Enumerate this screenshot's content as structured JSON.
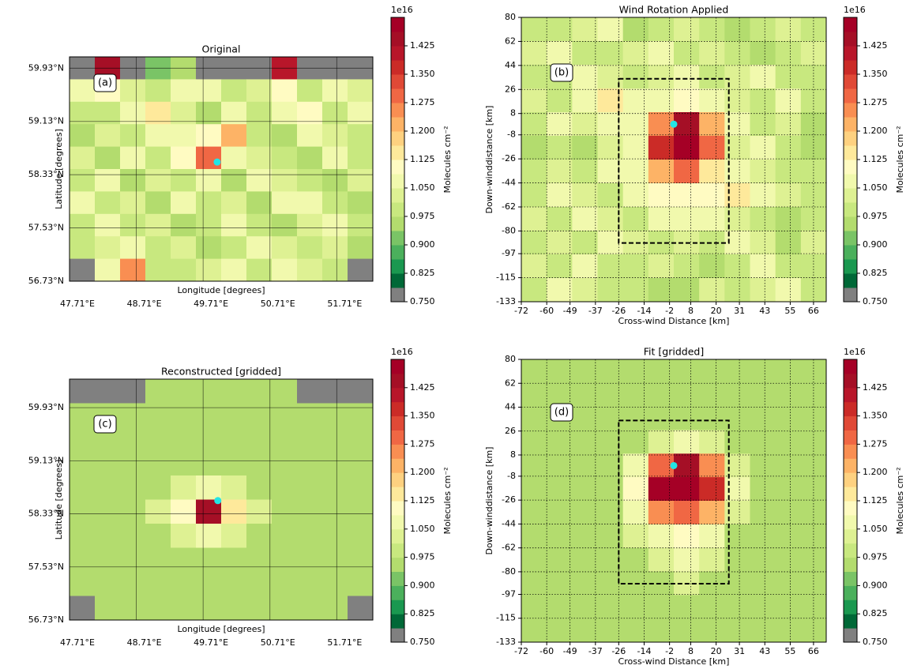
{
  "chart_data": [
    {
      "type": "heatmap",
      "title": "Original",
      "panel_label": "(a)",
      "xlabel": "Longitude [degrees]",
      "ylabel": "Latitude [degrees]",
      "grid_style": "solid",
      "xlim": [
        47.71,
        52.25
      ],
      "ylim": [
        56.73,
        60.1
      ],
      "xticks": [
        {
          "value": 47.71,
          "label": "47.71°E"
        },
        {
          "value": 48.71,
          "label": "48.71°E"
        },
        {
          "value": 49.71,
          "label": "49.71°E"
        },
        {
          "value": 50.71,
          "label": "50.71°E"
        },
        {
          "value": 51.71,
          "label": "51.71°E"
        }
      ],
      "yticks": [
        {
          "value": 56.73,
          "label": "56.73°N"
        },
        {
          "value": 57.53,
          "label": "57.53°N"
        },
        {
          "value": 58.33,
          "label": "58.33°N"
        },
        {
          "value": 59.13,
          "label": "59.13°N"
        },
        {
          "value": 59.93,
          "label": "59.93°N"
        }
      ],
      "z": [
        [
          0.75,
          1.45,
          0.75,
          0.9,
          0.95,
          0.75,
          0.75,
          0.75,
          1.42,
          0.75,
          0.75,
          0.75
        ],
        [
          1.05,
          1.1,
          1.02,
          1.0,
          1.08,
          1.05,
          0.98,
          1.02,
          1.1,
          1.0,
          1.05,
          1.02
        ],
        [
          1.0,
          0.98,
          1.05,
          1.15,
          1.02,
          0.97,
          1.05,
          1.0,
          1.08,
          1.12,
          0.98,
          1.05
        ],
        [
          0.95,
          1.02,
          1.0,
          1.08,
          1.05,
          1.1,
          1.2,
          1.0,
          0.97,
          1.05,
          1.02,
          0.98
        ],
        [
          1.02,
          0.97,
          1.05,
          1.0,
          1.12,
          1.3,
          1.05,
          1.02,
          1.0,
          0.95,
          1.08,
          1.0
        ],
        [
          0.98,
          1.05,
          0.95,
          1.02,
          1.0,
          1.05,
          0.97,
          1.05,
          1.02,
          1.0,
          0.96,
          1.02
        ],
        [
          1.05,
          1.0,
          1.02,
          0.96,
          1.05,
          0.98,
          1.02,
          0.95,
          1.05,
          1.08,
          1.0,
          0.97
        ],
        [
          1.0,
          1.08,
          0.98,
          1.02,
          0.94,
          1.0,
          1.05,
          1.0,
          0.97,
          1.02,
          1.05,
          1.0
        ],
        [
          0.98,
          1.02,
          1.05,
          1.0,
          1.02,
          0.95,
          1.0,
          1.08,
          1.02,
          0.98,
          1.02,
          0.96
        ],
        [
          0.75,
          1.05,
          1.25,
          1.0,
          0.98,
          1.02,
          1.05,
          1.0,
          1.05,
          1.02,
          1.0,
          0.75
        ]
      ],
      "marker": {
        "x": 49.92,
        "y": 58.52,
        "color": "#22e5e5"
      },
      "colorbar": {
        "label": "Molecules cm⁻²",
        "offset": "1e16",
        "lim": [
          0.75,
          1.5
        ],
        "ticks": [
          {
            "value": 0.75,
            "label": "0.750"
          },
          0.825,
          {
            "value": 0.9,
            "label": "0.900"
          },
          0.975,
          {
            "value": 1.05,
            "label": "1.050"
          },
          1.125,
          {
            "value": 1.2,
            "label": "1.200"
          },
          1.275,
          {
            "value": 1.35,
            "label": "1.350"
          },
          1.425
        ],
        "colors": [
          "#808080",
          "#006837",
          "#1a9850",
          "#4bb05c",
          "#7ac466",
          "#b3dc6e",
          "#c8e87f",
          "#def193",
          "#f1f9ad",
          "#fffbc2",
          "#fee99b",
          "#fed180",
          "#fdb366",
          "#f98e52",
          "#f06744",
          "#e04936",
          "#cb2b27",
          "#b8162a",
          "#a50f26",
          "#a50026"
        ]
      }
    },
    {
      "type": "heatmap",
      "title": "Wind Rotation Applied",
      "panel_label": "(b)",
      "xlabel": "Cross-wind Distance [km]",
      "ylabel": "Down-winddistance [km]",
      "grid_style": "dotted",
      "xlim": [
        -72,
        72
      ],
      "ylim": [
        -133,
        80
      ],
      "xticks": [
        -72,
        -60,
        -49,
        -37,
        -26,
        -14,
        -2,
        8,
        20,
        31,
        43,
        55,
        66
      ],
      "yticks": [
        80,
        62,
        44,
        26,
        8,
        -8,
        -26,
        -44,
        -62,
        -80,
        -97,
        -115,
        -133
      ],
      "z": [
        [
          1.0,
          0.98,
          1.02,
          1.05,
          0.97,
          1.0,
          1.02,
          0.98,
          0.95,
          1.0,
          1.02,
          0.98
        ],
        [
          1.02,
          1.05,
          1.0,
          0.98,
          1.02,
          1.05,
          1.0,
          1.02,
          1.0,
          0.97,
          1.0,
          1.02
        ],
        [
          0.98,
          1.0,
          1.08,
          1.02,
          1.0,
          1.02,
          1.05,
          1.0,
          1.02,
          1.05,
          1.0,
          0.98
        ],
        [
          1.02,
          1.0,
          1.05,
          1.15,
          1.05,
          1.08,
          1.1,
          1.05,
          1.02,
          1.0,
          1.05,
          1.0
        ],
        [
          1.0,
          1.05,
          1.02,
          1.05,
          1.08,
          1.25,
          1.45,
          1.2,
          1.05,
          1.0,
          1.02,
          0.97
        ],
        [
          0.97,
          1.0,
          0.96,
          1.02,
          1.05,
          1.35,
          1.48,
          1.3,
          1.02,
          1.05,
          1.0,
          0.95
        ],
        [
          1.0,
          1.02,
          1.0,
          1.05,
          1.08,
          1.2,
          1.3,
          1.15,
          1.08,
          1.02,
          0.98,
          1.0
        ],
        [
          0.98,
          1.05,
          1.02,
          1.0,
          1.05,
          1.1,
          1.12,
          1.1,
          1.15,
          1.05,
          1.02,
          0.98
        ],
        [
          1.02,
          1.0,
          1.05,
          1.02,
          1.0,
          1.05,
          1.08,
          1.05,
          1.02,
          1.0,
          0.95,
          1.0
        ],
        [
          1.0,
          1.02,
          0.98,
          1.05,
          1.02,
          1.0,
          1.02,
          1.0,
          1.05,
          1.02,
          0.96,
          1.02
        ],
        [
          1.02,
          1.0,
          1.05,
          1.0,
          0.98,
          1.02,
          1.0,
          0.97,
          1.0,
          1.05,
          1.0,
          0.98
        ],
        [
          1.0,
          1.05,
          1.02,
          0.98,
          1.0,
          0.95,
          0.97,
          1.02,
          1.0,
          1.02,
          1.05,
          1.0
        ]
      ],
      "marker": {
        "x": 0,
        "y": 0,
        "color": "#22e5e5"
      },
      "region": {
        "x": [
          -26,
          26
        ],
        "y": [
          34,
          -89
        ]
      },
      "colorbar": {
        "label": "Molecules cm⁻²",
        "offset": "1e16",
        "lim": [
          0.75,
          1.5
        ],
        "ticks": [
          {
            "value": 0.75,
            "label": "0.750"
          },
          0.825,
          {
            "value": 0.9,
            "label": "0.900"
          },
          0.975,
          {
            "value": 1.05,
            "label": "1.050"
          },
          1.125,
          {
            "value": 1.2,
            "label": "1.200"
          },
          1.275,
          {
            "value": 1.35,
            "label": "1.350"
          },
          1.425
        ],
        "colors": [
          "#808080",
          "#006837",
          "#1a9850",
          "#4bb05c",
          "#7ac466",
          "#b3dc6e",
          "#c8e87f",
          "#def193",
          "#f1f9ad",
          "#fffbc2",
          "#fee99b",
          "#fed180",
          "#fdb366",
          "#f98e52",
          "#f06744",
          "#e04936",
          "#cb2b27",
          "#b8162a",
          "#a50f26",
          "#a50026"
        ]
      }
    },
    {
      "type": "heatmap",
      "title": "Reconstructed [gridded]",
      "panel_label": "(c)",
      "xlabel": "Longitude [degrees]",
      "ylabel": "Latitude [degrees]",
      "grid_style": "solid",
      "xlim": [
        47.71,
        52.25
      ],
      "ylim": [
        56.73,
        60.36
      ],
      "xticks": [
        {
          "value": 47.71,
          "label": "47.71°E"
        },
        {
          "value": 48.71,
          "label": "48.71°E"
        },
        {
          "value": 49.71,
          "label": "49.71°E"
        },
        {
          "value": 50.71,
          "label": "50.71°E"
        },
        {
          "value": 51.71,
          "label": "51.71°E"
        }
      ],
      "yticks": [
        {
          "value": 56.73,
          "label": "56.73°N"
        },
        {
          "value": 57.53,
          "label": "57.53°N"
        },
        {
          "value": 58.33,
          "label": "58.33°N"
        },
        {
          "value": 59.13,
          "label": "59.13°N"
        },
        {
          "value": 59.93,
          "label": "59.93°N"
        }
      ],
      "z": [
        [
          0.75,
          0.75,
          0.75,
          0.97,
          0.97,
          0.97,
          0.97,
          0.97,
          0.97,
          0.75,
          0.75,
          0.75
        ],
        [
          0.97,
          0.97,
          0.97,
          0.97,
          0.97,
          0.97,
          0.97,
          0.97,
          0.97,
          0.97,
          0.97,
          0.97
        ],
        [
          0.97,
          0.97,
          0.97,
          0.97,
          0.97,
          0.97,
          0.97,
          0.97,
          0.97,
          0.97,
          0.97,
          0.97
        ],
        [
          0.97,
          0.97,
          0.97,
          0.97,
          0.97,
          0.97,
          0.97,
          0.97,
          0.97,
          0.97,
          0.97,
          0.97
        ],
        [
          0.97,
          0.97,
          0.97,
          0.97,
          1.02,
          1.05,
          1.02,
          0.97,
          0.97,
          0.97,
          0.97,
          0.97
        ],
        [
          0.97,
          0.97,
          0.97,
          1.02,
          1.1,
          1.45,
          1.15,
          1.02,
          0.97,
          0.97,
          0.97,
          0.97
        ],
        [
          0.97,
          0.97,
          0.97,
          0.97,
          1.02,
          1.05,
          1.02,
          0.97,
          0.97,
          0.97,
          0.97,
          0.97
        ],
        [
          0.97,
          0.97,
          0.97,
          0.97,
          0.97,
          0.97,
          0.97,
          0.97,
          0.97,
          0.97,
          0.97,
          0.97
        ],
        [
          0.97,
          0.97,
          0.97,
          0.97,
          0.97,
          0.97,
          0.97,
          0.97,
          0.97,
          0.97,
          0.97,
          0.97
        ],
        [
          0.75,
          0.97,
          0.97,
          0.97,
          0.97,
          0.97,
          0.97,
          0.97,
          0.97,
          0.97,
          0.97,
          0.75
        ]
      ],
      "marker": {
        "x": 49.93,
        "y": 58.53,
        "color": "#22e5e5"
      },
      "colorbar": {
        "label": "Molecules cm⁻²",
        "offset": "1e16",
        "lim": [
          0.75,
          1.5
        ],
        "ticks": [
          {
            "value": 0.75,
            "label": "0.750"
          },
          0.825,
          {
            "value": 0.9,
            "label": "0.900"
          },
          0.975,
          {
            "value": 1.05,
            "label": "1.050"
          },
          1.125,
          {
            "value": 1.2,
            "label": "1.200"
          },
          1.275,
          {
            "value": 1.35,
            "label": "1.350"
          },
          1.425
        ],
        "colors": [
          "#808080",
          "#006837",
          "#1a9850",
          "#4bb05c",
          "#7ac466",
          "#b3dc6e",
          "#c8e87f",
          "#def193",
          "#f1f9ad",
          "#fffbc2",
          "#fee99b",
          "#fed180",
          "#fdb366",
          "#f98e52",
          "#f06744",
          "#e04936",
          "#cb2b27",
          "#b8162a",
          "#a50f26",
          "#a50026"
        ]
      }
    },
    {
      "type": "heatmap",
      "title": "Fit [gridded]",
      "panel_label": "(d)",
      "xlabel": "Cross-wind Distance [km]",
      "ylabel": "Down-winddistance [km]",
      "grid_style": "dotted",
      "xlim": [
        -72,
        72
      ],
      "ylim": [
        -133,
        80
      ],
      "xticks": [
        -72,
        -60,
        -49,
        -37,
        -26,
        -14,
        -2,
        8,
        20,
        31,
        43,
        55,
        66
      ],
      "yticks": [
        80,
        62,
        44,
        26,
        8,
        -8,
        -26,
        -44,
        -62,
        -80,
        -97,
        -115,
        -133
      ],
      "z": [
        [
          0.97,
          0.97,
          0.97,
          0.97,
          0.97,
          0.97,
          0.97,
          0.97,
          0.97,
          0.97,
          0.97,
          0.97
        ],
        [
          0.97,
          0.97,
          0.97,
          0.97,
          0.97,
          0.97,
          0.97,
          0.97,
          0.97,
          0.97,
          0.97,
          0.97
        ],
        [
          0.97,
          0.97,
          0.97,
          0.97,
          0.97,
          0.97,
          0.97,
          0.97,
          0.97,
          0.97,
          0.97,
          0.97
        ],
        [
          0.97,
          0.97,
          0.97,
          0.97,
          0.97,
          1.02,
          1.05,
          1.02,
          0.97,
          0.97,
          0.97,
          0.97
        ],
        [
          0.97,
          0.97,
          0.97,
          0.97,
          1.05,
          1.3,
          1.45,
          1.25,
          1.02,
          0.97,
          0.97,
          0.97
        ],
        [
          0.97,
          0.97,
          0.97,
          0.97,
          1.1,
          1.48,
          1.48,
          1.35,
          1.05,
          0.97,
          0.97,
          0.97
        ],
        [
          0.97,
          0.97,
          0.97,
          0.97,
          1.05,
          1.25,
          1.3,
          1.2,
          1.02,
          0.97,
          0.97,
          0.97
        ],
        [
          0.97,
          0.97,
          0.97,
          0.97,
          1.02,
          1.08,
          1.1,
          1.05,
          0.97,
          0.97,
          0.97,
          0.97
        ],
        [
          0.97,
          0.97,
          0.97,
          0.97,
          0.97,
          1.02,
          1.05,
          1.02,
          0.97,
          0.97,
          0.97,
          0.97
        ],
        [
          0.97,
          0.97,
          0.97,
          0.97,
          0.97,
          0.97,
          1.02,
          0.97,
          0.97,
          0.97,
          0.97,
          0.97
        ],
        [
          0.97,
          0.97,
          0.97,
          0.97,
          0.97,
          0.97,
          0.97,
          0.97,
          0.97,
          0.97,
          0.97,
          0.97
        ],
        [
          0.97,
          0.97,
          0.97,
          0.97,
          0.97,
          0.97,
          0.97,
          0.97,
          0.97,
          0.97,
          0.97,
          0.97
        ]
      ],
      "marker": {
        "x": 0,
        "y": 0,
        "color": "#22e5e5"
      },
      "region": {
        "x": [
          -26,
          26
        ],
        "y": [
          34,
          -89
        ]
      },
      "colorbar": {
        "label": "Molecules cm⁻²",
        "offset": "1e16",
        "lim": [
          0.75,
          1.5
        ],
        "ticks": [
          {
            "value": 0.75,
            "label": "0.750"
          },
          0.825,
          {
            "value": 0.9,
            "label": "0.900"
          },
          0.975,
          {
            "value": 1.05,
            "label": "1.050"
          },
          1.125,
          {
            "value": 1.2,
            "label": "1.200"
          },
          1.275,
          {
            "value": 1.35,
            "label": "1.350"
          },
          1.425
        ],
        "colors": [
          "#808080",
          "#006837",
          "#1a9850",
          "#4bb05c",
          "#7ac466",
          "#b3dc6e",
          "#c8e87f",
          "#def193",
          "#f1f9ad",
          "#fffbc2",
          "#fee99b",
          "#fed180",
          "#fdb366",
          "#f98e52",
          "#f06744",
          "#e04936",
          "#cb2b27",
          "#b8162a",
          "#a50f26",
          "#a50026"
        ]
      }
    }
  ]
}
